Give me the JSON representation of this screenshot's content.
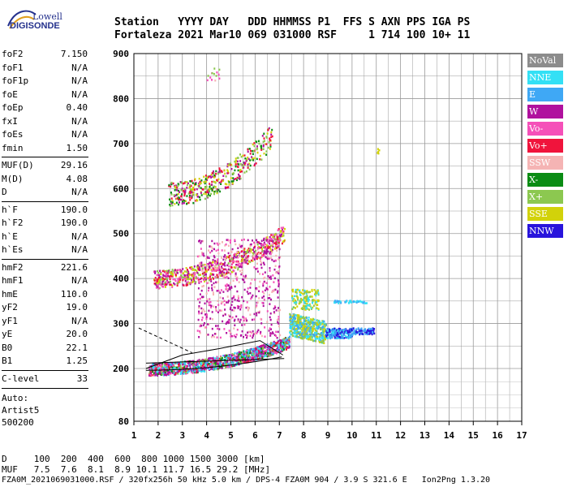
{
  "logo": {
    "line1": "Lowell",
    "line2": "DIGISONDE"
  },
  "header": {
    "row1": "Station   YYYY DAY   DDD HHMMSS P1  FFS S AXN PPS IGA PS",
    "row2": "Fortaleza 2021 Mar10 069 031000 RSF     1 714 100 10+ 11"
  },
  "params_a": [
    {
      "name": "foF2",
      "value": "7.150"
    },
    {
      "name": "foF1",
      "value": "N/A"
    },
    {
      "name": "foF1p",
      "value": "N/A"
    },
    {
      "name": "foE",
      "value": "N/A"
    },
    {
      "name": "foEp",
      "value": "0.40"
    },
    {
      "name": "fxI",
      "value": "N/A"
    },
    {
      "name": "foEs",
      "value": "N/A"
    },
    {
      "name": "fmin",
      "value": "1.50"
    }
  ],
  "params_b": [
    {
      "name": "MUF(D)",
      "value": "29.16"
    },
    {
      "name": "M(D)",
      "value": "4.08"
    },
    {
      "name": "D",
      "value": "N/A"
    }
  ],
  "params_c": [
    {
      "name": "h`F",
      "value": "190.0"
    },
    {
      "name": "h`F2",
      "value": "190.0"
    },
    {
      "name": "h`E",
      "value": "N/A"
    },
    {
      "name": "h`Es",
      "value": "N/A"
    }
  ],
  "params_d": [
    {
      "name": "hmF2",
      "value": "221.6"
    },
    {
      "name": "hmF1",
      "value": "N/A"
    },
    {
      "name": "hmE",
      "value": "110.0"
    },
    {
      "name": "yF2",
      "value": "19.0"
    },
    {
      "name": "yF1",
      "value": "N/A"
    },
    {
      "name": "yE",
      "value": "20.0"
    },
    {
      "name": "B0",
      "value": "22.1"
    },
    {
      "name": "B1",
      "value": "1.25"
    }
  ],
  "clevel": {
    "name": "C-level",
    "value": "33"
  },
  "auto": {
    "line1": "Auto:",
    "line2": "Artist5",
    "line3": "500200"
  },
  "axes": {
    "y_ticks": [
      "900",
      "800",
      "700",
      "600",
      "500",
      "400",
      "300",
      "200",
      "80"
    ],
    "x_ticks": [
      "1",
      "2",
      "3",
      "4",
      "5",
      "6",
      "7",
      "8",
      "9",
      "10",
      "11",
      "12",
      "13",
      "14",
      "15",
      "16",
      "17"
    ]
  },
  "legend": [
    {
      "label": "NoVal",
      "color": "#8c8c8c"
    },
    {
      "label": "NNE",
      "color": "#33e0f5"
    },
    {
      "label": "E",
      "color": "#3fa8f5"
    },
    {
      "label": "W",
      "color": "#b0119e"
    },
    {
      "label": "Vo-",
      "color": "#f550b9"
    },
    {
      "label": "Vo+",
      "color": "#f0143c"
    },
    {
      "label": "SSW",
      "color": "#f5b4b4"
    },
    {
      "label": "X-",
      "color": "#0a8c14"
    },
    {
      "label": "X+",
      "color": "#8cc850"
    },
    {
      "label": "SSE",
      "color": "#d2d20a"
    },
    {
      "label": "NNW",
      "color": "#2814dc"
    }
  ],
  "footer": {
    "row1": "D     100  200  400  600  800 1000 1500 3000 [km]",
    "row2": "MUF   7.5  7.6  8.1  8.9 10.1 11.7 16.5 29.2 [MHz]",
    "row3": "FZA0M_2021069031000.RSF / 320fx256h 50 kHz 5.0 km / DPS-4 FZA0M 904 / 3.9 S 321.6 E   Ion2Png 1.3.20"
  }
}
